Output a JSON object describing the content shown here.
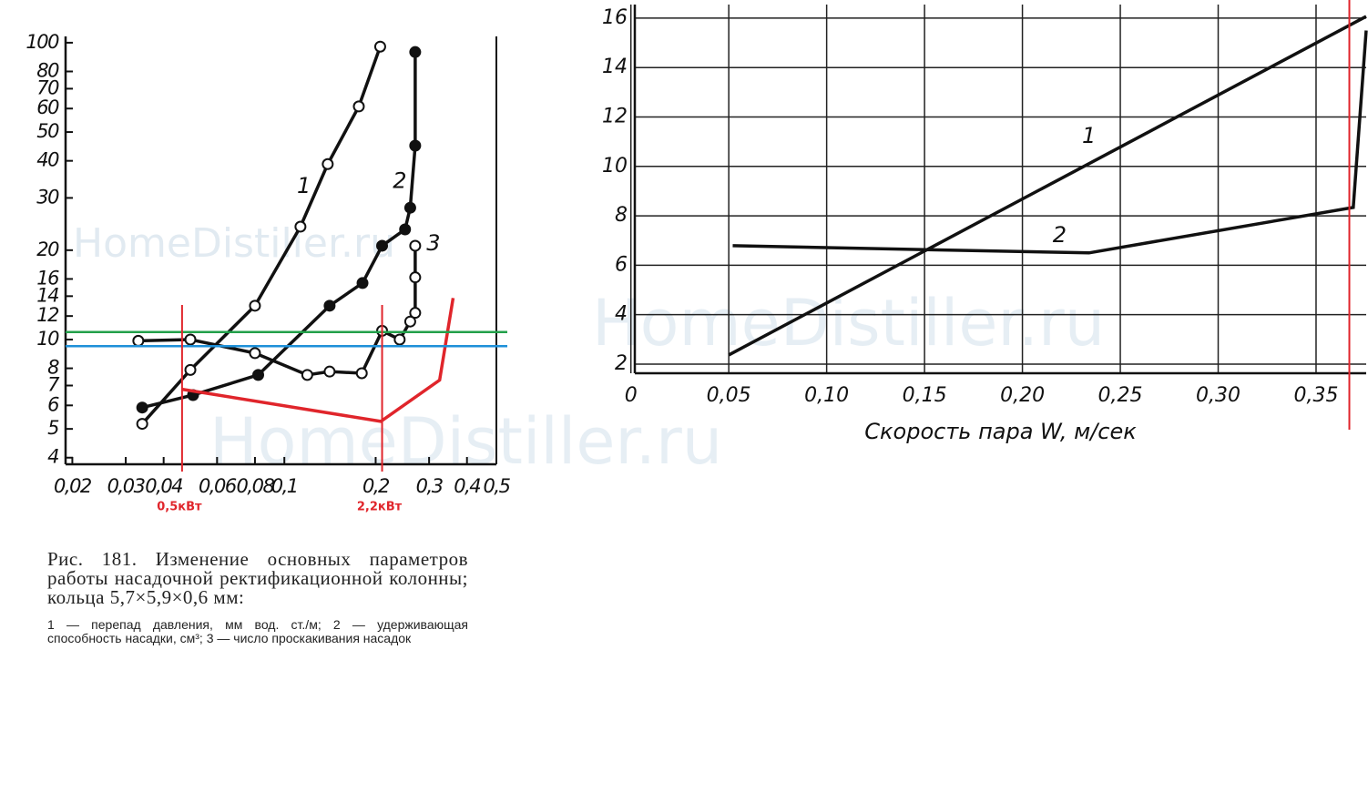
{
  "chart_data": [
    {
      "type": "line",
      "xscale": "log",
      "yscale": "log",
      "grid": false,
      "xlim": [
        0.019,
        0.5
      ],
      "ylim": [
        3.8,
        105
      ],
      "xticks": [
        {
          "value": 0.02,
          "label": "0,02"
        },
        {
          "value": 0.03,
          "label": "0,03"
        },
        {
          "value": 0.04,
          "label": "0,04"
        },
        {
          "value": 0.06,
          "label": "0,06"
        },
        {
          "value": 0.08,
          "label": "0,08"
        },
        {
          "value": 0.1,
          "label": "0,1"
        },
        {
          "value": 0.2,
          "label": "0,2"
        },
        {
          "value": 0.3,
          "label": "0,3"
        },
        {
          "value": 0.4,
          "label": "0,4"
        },
        {
          "value": 0.5,
          "label": "0,5"
        }
      ],
      "yticks": [
        4,
        5,
        6,
        7,
        8,
        10,
        12,
        14,
        16,
        20,
        30,
        40,
        50,
        60,
        70,
        80,
        100
      ],
      "series": [
        {
          "name": "1",
          "color": "#111111",
          "marker": "open",
          "x": [
            0.034,
            0.049,
            0.08,
            0.113,
            0.139,
            0.176,
            0.207
          ],
          "values": [
            5.2,
            7.9,
            13,
            24,
            39,
            61,
            97
          ]
        },
        {
          "name": "2",
          "color": "#111111",
          "marker": "filled",
          "x": [
            0.034,
            0.05,
            0.082,
            0.141,
            0.181,
            0.21,
            0.25,
            0.26,
            0.27,
            0.27
          ],
          "values": [
            5.9,
            6.5,
            7.6,
            13,
            15.5,
            20.7,
            23.5,
            27.8,
            45,
            93
          ]
        },
        {
          "name": "3",
          "color": "#111111",
          "marker": "open",
          "x": [
            0.033,
            0.049,
            0.08,
            0.119,
            0.141,
            0.18,
            0.21,
            0.24,
            0.26,
            0.27,
            0.27,
            0.27
          ],
          "values": [
            9.9,
            10,
            9,
            7.6,
            7.8,
            7.7,
            10.7,
            10,
            11.5,
            12.3,
            16.2,
            20.7
          ]
        },
        {
          "color": "#e0252b",
          "x": [
            0.046,
            0.208,
            0.325,
            0.36
          ],
          "values": [
            6.8,
            5.3,
            7.3,
            13.8
          ]
        }
      ],
      "annotations": [
        {
          "text": "1",
          "x": 0.116,
          "y": 32.7
        },
        {
          "text": "2",
          "x": 0.24,
          "y": 34
        },
        {
          "text": "3",
          "x": 0.31,
          "y": 21
        }
      ],
      "hlines": [
        {
          "value": 10.6,
          "color": "#22a04a"
        },
        {
          "value": 9.5,
          "color": "#1e90d8"
        }
      ],
      "vlines": [
        {
          "value": 0.046,
          "label": "0,5кВт",
          "color": "#e0252b"
        },
        {
          "value": 0.21,
          "label": "2,2кВт",
          "color": "#e0252b"
        }
      ],
      "watermark": "HomeDistiller.ru",
      "caption": "Рис. 181. Изменение основных параметров работы насадочной ректификационной колонны; кольца 5,7×5,9×0,6 мм:",
      "note": "1 — перепад давления, мм вод. ст./м; 2 — удерживающая способность насадки, см³; 3 — число проскакивания насадок"
    },
    {
      "type": "line",
      "grid": true,
      "xlim": [
        0.002,
        0.3756
      ],
      "ylim": [
        1.63,
        16.55
      ],
      "xticks": [
        0,
        {
          "value": 0.05,
          "label": "0,05"
        },
        {
          "value": 0.1,
          "label": "0,10"
        },
        {
          "value": 0.15,
          "label": "0,15"
        },
        {
          "value": 0.2,
          "label": "0,20"
        },
        {
          "value": 0.25,
          "label": "0,25"
        },
        {
          "value": 0.3,
          "label": "0,30"
        },
        {
          "value": 0.35,
          "label": "0,35"
        }
      ],
      "yticks": [
        2,
        4,
        6,
        8,
        10,
        12,
        14,
        16
      ],
      "xlabel": "Скорость пара W, м/сек",
      "series": [
        {
          "name": "1",
          "color": "#111111",
          "x": [
            0.05,
            0.3756
          ],
          "values": [
            2.37,
            16.07
          ]
        },
        {
          "name": "2",
          "color": "#111111",
          "x": [
            0.052,
            0.234,
            0.369,
            0.3756
          ],
          "values": [
            6.79,
            6.5,
            8.34,
            15.5
          ]
        }
      ],
      "annotations": [
        {
          "text": "1",
          "x": 0.234,
          "y": 11.2
        },
        {
          "text": "2",
          "x": 0.219,
          "y": 7.2
        }
      ],
      "vlines": [
        {
          "value": 0.367,
          "color": "#e0252b"
        }
      ],
      "watermark": "HomeDistiller.ru"
    }
  ]
}
